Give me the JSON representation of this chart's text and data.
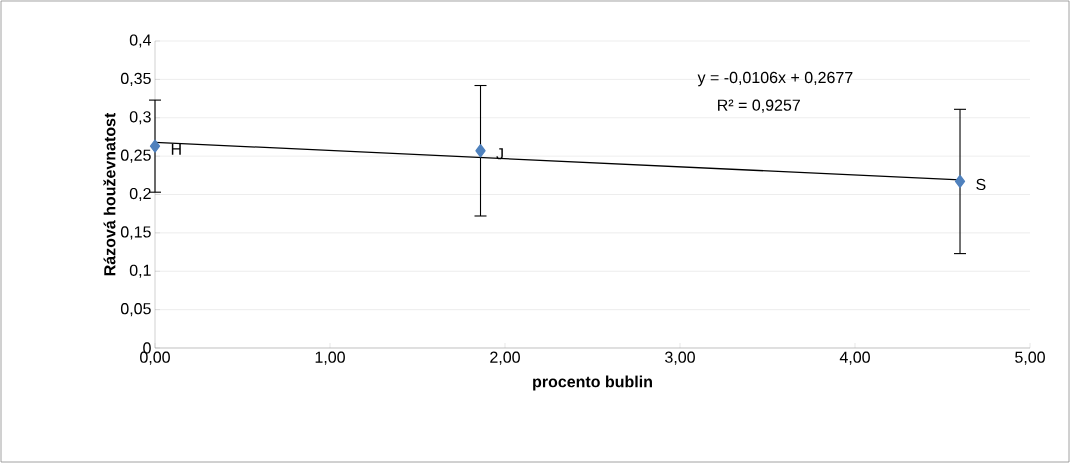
{
  "chart_data": {
    "type": "scatter",
    "xlabel": "procento bublin",
    "ylabel": "Rázová houževnatost",
    "xlim": [
      0,
      5
    ],
    "ylim": [
      0,
      0.4
    ],
    "xticks": [
      {
        "value": 0,
        "label": "0,00"
      },
      {
        "value": 1,
        "label": "1,00"
      },
      {
        "value": 2,
        "label": "2,00"
      },
      {
        "value": 3,
        "label": "3,00"
      },
      {
        "value": 4,
        "label": "4,00"
      },
      {
        "value": 5,
        "label": "5,00"
      }
    ],
    "yticks": [
      {
        "value": 0,
        "label": "0"
      },
      {
        "value": 0.05,
        "label": "0,05"
      },
      {
        "value": 0.1,
        "label": "0,1"
      },
      {
        "value": 0.15,
        "label": "0,15"
      },
      {
        "value": 0.2,
        "label": "0,2"
      },
      {
        "value": 0.25,
        "label": "0,25"
      },
      {
        "value": 0.3,
        "label": "0,3"
      },
      {
        "value": 0.35,
        "label": "0,35"
      },
      {
        "value": 0.4,
        "label": "0,4"
      }
    ],
    "grid": "y",
    "series": [
      {
        "color": "#4f81bd",
        "marker": "diamond",
        "x": [
          0,
          1.86,
          4.6
        ],
        "values": [
          0.263,
          0.257,
          0.217
        ],
        "errors": [
          0.06,
          0.085,
          0.094
        ]
      },
      {
        "type": "line",
        "color": "#000000",
        "marker": "none",
        "line_style": "solid",
        "x": [
          0,
          4.6
        ],
        "values": [
          0.268,
          0.219
        ]
      }
    ],
    "annotations": [
      "y = -0,0106x + 0,2677",
      "R² = 0,9257",
      {
        "text": "H",
        "x": 0,
        "y": 0.263
      },
      {
        "text": "J",
        "x": 1.86,
        "y": 0.257
      },
      {
        "text": "S",
        "x": 4.6,
        "y": 0.217
      }
    ]
  }
}
